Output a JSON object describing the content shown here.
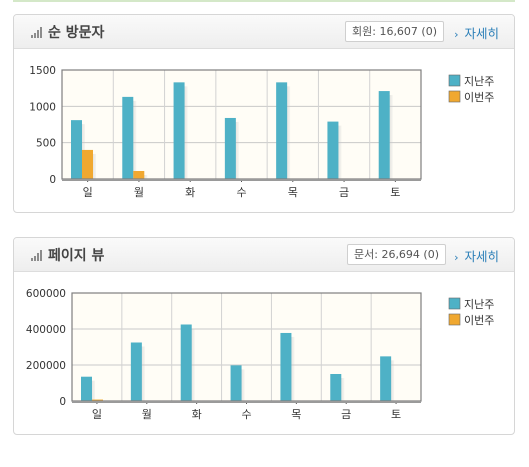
{
  "panels": [
    {
      "title": "순 방문자",
      "count_text": "회원: 16,607 (0)",
      "more_label": "자세히",
      "more_arrow": "›",
      "icon": "signal-bars-icon",
      "chart_data": {
        "type": "bar",
        "categories": [
          "일",
          "월",
          "화",
          "수",
          "목",
          "금",
          "토"
        ],
        "series": [
          {
            "name": "지난주",
            "color": "#4eb1c6",
            "values": [
              810,
              1130,
              1330,
              840,
              1330,
              790,
              1210
            ]
          },
          {
            "name": "이번주",
            "color": "#f0a830",
            "values": [
              400,
              110,
              0,
              0,
              0,
              0,
              0
            ]
          }
        ],
        "y_ticks": [
          "0",
          "500",
          "1000",
          "1500"
        ],
        "ylim": [
          0,
          1500
        ],
        "legend": "right",
        "grid": true
      }
    },
    {
      "title": "페이지 뷰",
      "count_text": "문서: 26,694 (0)",
      "more_label": "자세히",
      "more_arrow": "›",
      "icon": "signal-bars-icon",
      "chart_data": {
        "type": "bar",
        "categories": [
          "일",
          "월",
          "화",
          "수",
          "목",
          "금",
          "토"
        ],
        "series": [
          {
            "name": "지난주",
            "color": "#4eb1c6",
            "values": [
              135000,
              325000,
              425000,
              198000,
              378000,
              150000,
              248000
            ]
          },
          {
            "name": "이번주",
            "color": "#f0a830",
            "values": [
              8000,
              0,
              0,
              0,
              0,
              0,
              0
            ]
          }
        ],
        "y_ticks": [
          "0",
          "200000",
          "400000",
          "600000"
        ],
        "ylim": [
          0,
          600000
        ],
        "legend": "right",
        "grid": true
      }
    }
  ]
}
